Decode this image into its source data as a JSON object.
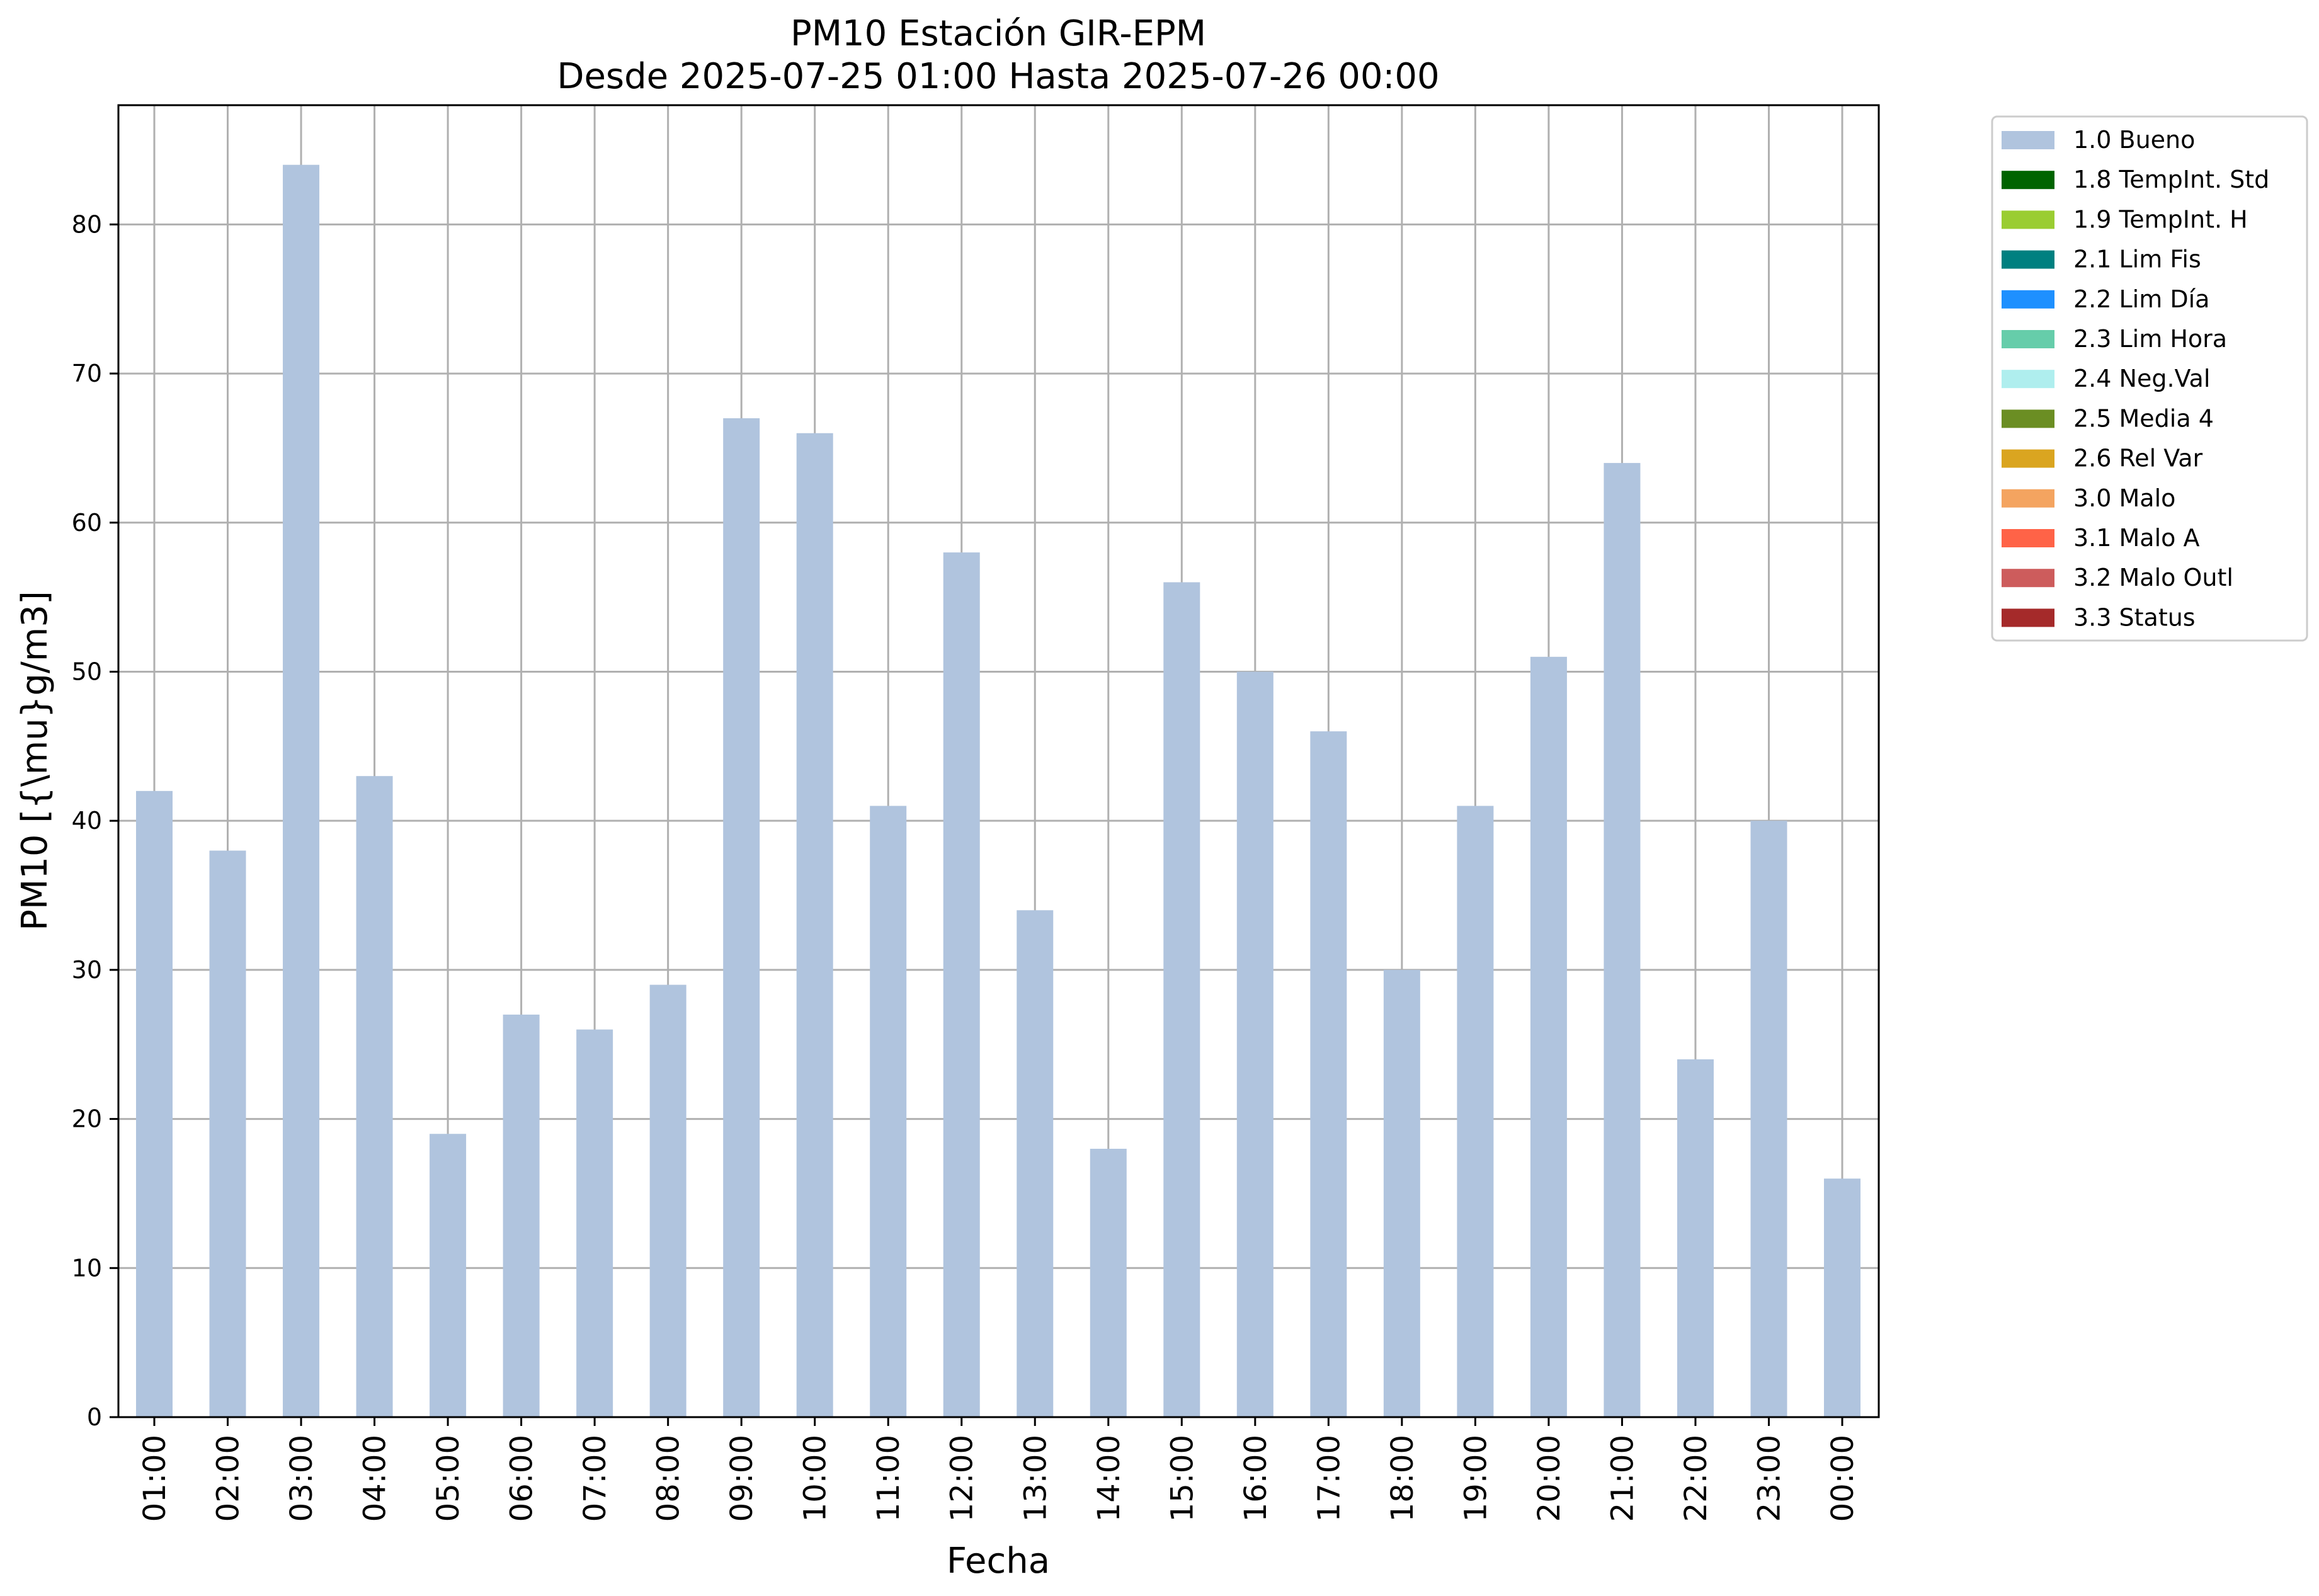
{
  "chart_data": {
    "type": "bar",
    "title": "PM10 Estación GIR-EPM",
    "subtitle": "Desde 2025-07-25 01:00 Hasta 2025-07-26 00:00",
    "xlabel": "Fecha",
    "ylabel": "PM10 [{\\mu}g/m3]",
    "ylim": [
      0,
      88
    ],
    "yticks": [
      0,
      10,
      20,
      30,
      40,
      50,
      60,
      70,
      80
    ],
    "grid": true,
    "legend_position": "outside-top-right",
    "categories": [
      "01:00",
      "02:00",
      "03:00",
      "04:00",
      "05:00",
      "06:00",
      "07:00",
      "08:00",
      "09:00",
      "10:00",
      "11:00",
      "12:00",
      "13:00",
      "14:00",
      "15:00",
      "16:00",
      "17:00",
      "18:00",
      "19:00",
      "20:00",
      "21:00",
      "22:00",
      "23:00",
      "00:00"
    ],
    "series": [
      {
        "name": "1.0 Bueno",
        "color": "#b0c4de",
        "values": [
          42,
          38,
          84,
          43,
          19,
          27,
          26,
          29,
          67,
          66,
          41,
          58,
          34,
          18,
          56,
          50,
          46,
          30,
          41,
          51,
          64,
          24,
          40,
          16
        ]
      }
    ],
    "legend": [
      {
        "label": "1.0 Bueno",
        "color": "#b0c4de"
      },
      {
        "label": "1.8 TempInt. Std",
        "color": "#006400"
      },
      {
        "label": "1.9 TempInt. H",
        "color": "#9acd32"
      },
      {
        "label": "2.1 Lim Fis",
        "color": "#008080"
      },
      {
        "label": "2.2 Lim Día",
        "color": "#1e90ff"
      },
      {
        "label": "2.3 Lim Hora",
        "color": "#66cdaa"
      },
      {
        "label": "2.4 Neg.Val",
        "color": "#afeeee"
      },
      {
        "label": "2.5 Media 4",
        "color": "#6b8e23"
      },
      {
        "label": "2.6 Rel Var",
        "color": "#daa520"
      },
      {
        "label": "3.0 Malo",
        "color": "#f4a460"
      },
      {
        "label": "3.1 Malo A",
        "color": "#ff6347"
      },
      {
        "label": "3.2 Malo Outl",
        "color": "#cd5c5c"
      },
      {
        "label": "3.3 Status",
        "color": "#a52a2a"
      }
    ]
  }
}
